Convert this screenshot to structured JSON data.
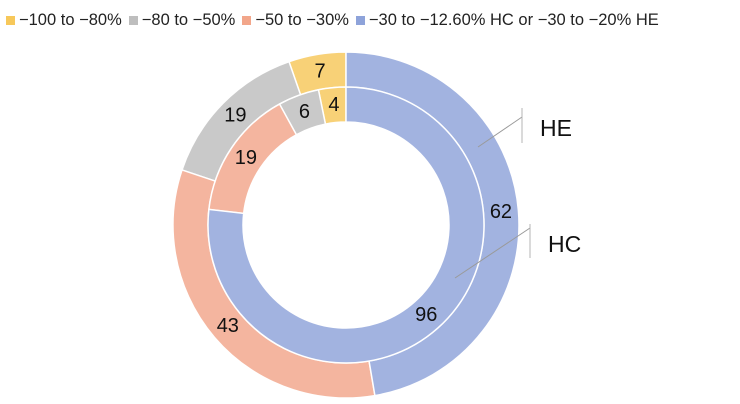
{
  "chart_data": {
    "type": "pie",
    "legend": [
      {
        "label": "−100 to −80%",
        "color": "#f7c85a"
      },
      {
        "label": "−80 to −50%",
        "color": "#bebebe"
      },
      {
        "label": "−50 to −30%",
        "color": "#f2a68a"
      },
      {
        "label": "−30 to −12.60% HC or −30 to −20% HE",
        "color": "#8ea3da"
      }
    ],
    "legend_position": "top",
    "rings": [
      {
        "name": "HE",
        "values": [
          7,
          19,
          43,
          62
        ]
      },
      {
        "name": "HC",
        "values": [
          4,
          6,
          19,
          96
        ]
      }
    ]
  }
}
